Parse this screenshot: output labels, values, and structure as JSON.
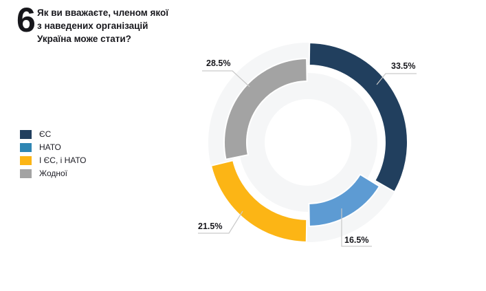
{
  "header": {
    "question_number": "6",
    "title_line1": "Як ви вважаєте, членом якої",
    "title_line2": "з наведених організацій",
    "title_line3": "Україна може стати?"
  },
  "legend": {
    "items": [
      {
        "label": "ЄС",
        "color": "#213f5e"
      },
      {
        "label": "НАТО",
        "color": "#2f86b3"
      },
      {
        "label": "І ЄС, і НАТО",
        "color": "#fcb515"
      },
      {
        "label": "Жодної",
        "color": "#a3a3a3"
      }
    ]
  },
  "chart_data": {
    "type": "pie",
    "variant": "staggered-donut",
    "title": "Як ви вважаєте, членом якої з наведених організацій Україна може стати?",
    "categories": [
      "ЄС",
      "НАТО",
      "І ЄС, і НАТО",
      "Жодної"
    ],
    "values": [
      33.5,
      16.5,
      21.5,
      28.5
    ],
    "unit": "%",
    "data_labels": [
      "33.5%",
      "16.5%",
      "21.5%",
      "28.5%"
    ],
    "segment_colors": [
      "#213f5e",
      "#5d9bd3",
      "#fcb515",
      "#a3a3a3"
    ],
    "start_angle": "12-oclock",
    "direction": "clockwise",
    "track_color": "#f5f6f7",
    "leader_line_color": "#c9c9c9",
    "legend_position": "left"
  }
}
